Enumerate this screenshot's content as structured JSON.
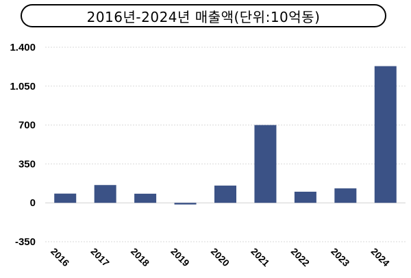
{
  "title": "2016년-2024년 매출액(단위:10억동)",
  "chart_data": {
    "type": "bar",
    "title": "2016년-2024년 매출액(단위:10억동)",
    "categories": [
      "2016",
      "2017",
      "2018",
      "2019",
      "2020",
      "2021",
      "2022",
      "2023",
      "2024"
    ],
    "values": [
      83,
      160,
      82,
      -15,
      155,
      700,
      100,
      130,
      1230
    ],
    "ylim": [
      -350,
      1400
    ],
    "yticks": [
      -350,
      0,
      350,
      700,
      1050,
      1400
    ],
    "ytick_labels": [
      "-350",
      "0",
      "350",
      "700",
      "1.050",
      "1.400"
    ],
    "xlabel": "",
    "ylabel": "",
    "grid": true,
    "bar_color": "#3b5286"
  }
}
